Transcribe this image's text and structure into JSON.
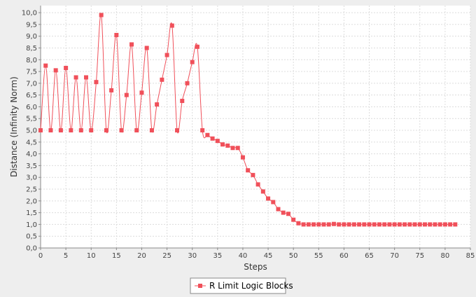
{
  "chart_data": {
    "type": "line",
    "xlabel": "Steps",
    "ylabel": "Distance (Infinity Norm)",
    "xlim": [
      0,
      85
    ],
    "ylim": [
      0,
      10.3
    ],
    "x_ticks": [
      0,
      5,
      10,
      15,
      20,
      25,
      30,
      35,
      40,
      45,
      50,
      55,
      60,
      65,
      70,
      75,
      80,
      85
    ],
    "y_ticks": [
      0,
      0.5,
      1,
      1.5,
      2,
      2.5,
      3,
      3.5,
      4,
      4.5,
      5,
      5.5,
      6,
      6.5,
      7,
      7.5,
      8,
      8.5,
      9,
      9.5,
      10
    ],
    "x_tick_labels": [
      "0",
      "5",
      "10",
      "15",
      "20",
      "25",
      "30",
      "35",
      "40",
      "45",
      "50",
      "55",
      "60",
      "65",
      "70",
      "75",
      "80",
      "85"
    ],
    "y_tick_labels": [
      "0,0",
      "0,5",
      "1,0",
      "1,5",
      "2,0",
      "2,5",
      "3,0",
      "3,5",
      "4,0",
      "4,5",
      "5,0",
      "5,5",
      "6,0",
      "6,5",
      "7,0",
      "7,5",
      "8,0",
      "8,5",
      "9,0",
      "9,5",
      "10,0"
    ],
    "grid": true,
    "legend_position": "bottom-center",
    "colors": {
      "series": "#f0505a",
      "grid": "#dcdcdc",
      "plot_bg": "#ffffff",
      "page_bg": "#eeeeee"
    },
    "series": [
      {
        "name": "R Limit Logic Blocks",
        "x": [
          0,
          1,
          2,
          3,
          4,
          5,
          6,
          7,
          8,
          9,
          10,
          11,
          12,
          13,
          14,
          15,
          16,
          17,
          18,
          19,
          20,
          21,
          22,
          23,
          24,
          25,
          26,
          27,
          28,
          29,
          30,
          31,
          32,
          33,
          34,
          35,
          36,
          37,
          38,
          39,
          40,
          41,
          42,
          43,
          44,
          45,
          46,
          47,
          48,
          49,
          50,
          51,
          52,
          53,
          54,
          55,
          56,
          57,
          58,
          59,
          60,
          61,
          62,
          63,
          64,
          65,
          66,
          67,
          68,
          69,
          70,
          71,
          72,
          73,
          74,
          75,
          76,
          77,
          78,
          79,
          80,
          81,
          82
        ],
        "y": [
          5.0,
          7.75,
          5.0,
          7.55,
          5.0,
          7.65,
          5.0,
          7.25,
          5.0,
          7.25,
          5.0,
          7.05,
          9.9,
          5.0,
          6.7,
          9.05,
          5.0,
          6.5,
          8.65,
          5.0,
          6.6,
          8.5,
          5.0,
          6.1,
          7.15,
          8.2,
          9.45,
          5.0,
          6.25,
          7.0,
          7.9,
          8.55,
          5.0,
          4.8,
          4.65,
          4.55,
          4.4,
          4.35,
          4.25,
          4.25,
          3.85,
          3.3,
          3.1,
          2.7,
          2.4,
          2.1,
          1.95,
          1.65,
          1.5,
          1.45,
          1.2,
          1.05,
          1.0,
          1.0,
          1.0,
          1.0,
          1.0,
          1.0,
          1.02,
          1.0,
          1.0,
          1.0,
          1.0,
          1.0,
          1.0,
          1.0,
          1.0,
          1.0,
          1.0,
          1.0,
          1.0,
          1.0,
          1.0,
          1.0,
          1.0,
          1.0,
          1.0,
          1.0,
          1.0,
          1.0,
          1.0,
          1.0,
          1.0
        ]
      }
    ]
  }
}
